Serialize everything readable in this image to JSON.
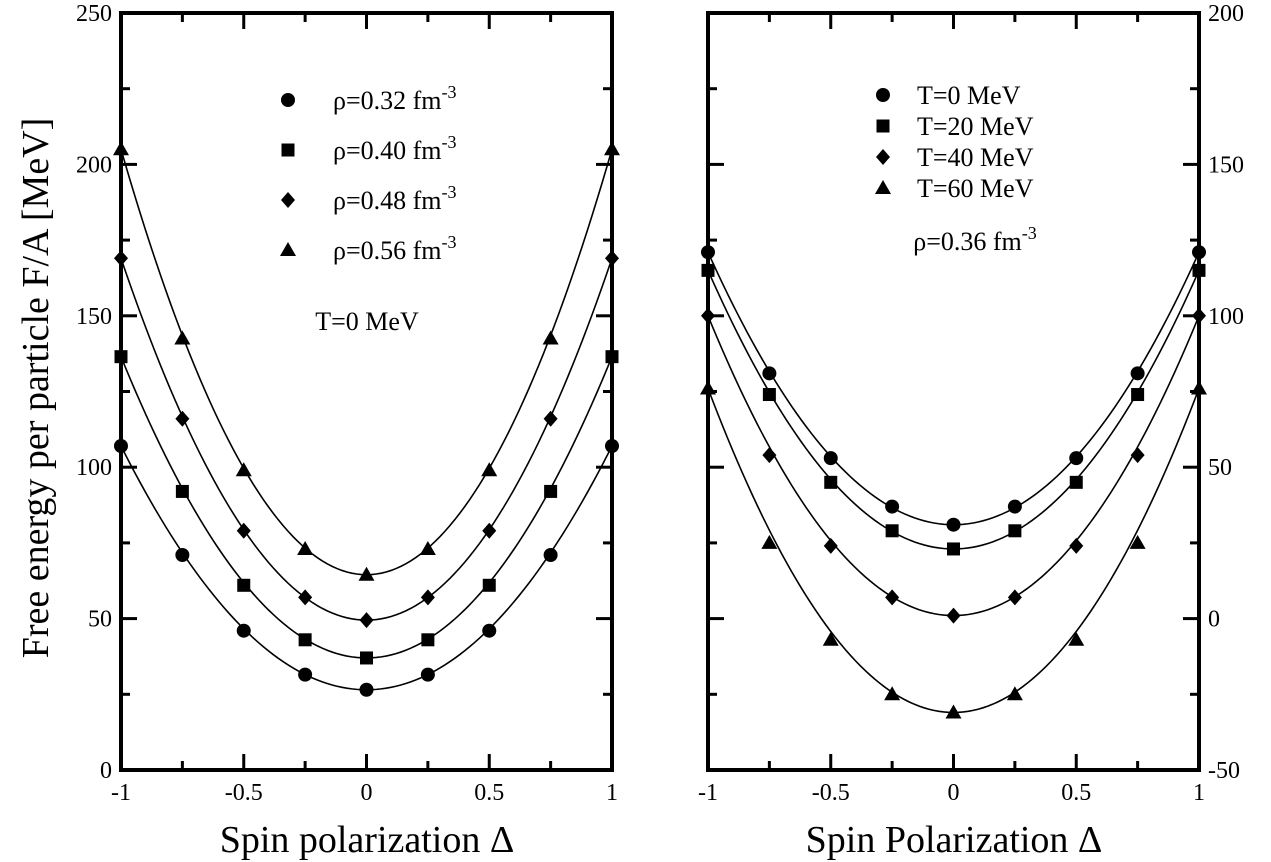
{
  "chart_data": [
    {
      "type": "scatter",
      "title": "",
      "xlabel": "Spin polarization Δ",
      "ylabel": "Free energy per particle F/A [MeV]",
      "xlim": [
        -1,
        1
      ],
      "ylim": [
        0,
        250
      ],
      "x_ticks": [
        "-1",
        "-0.5",
        "0",
        "0.5",
        "1"
      ],
      "y_ticks": [
        "0",
        "50",
        "100",
        "150",
        "200",
        "250"
      ],
      "y_tick_side": "left",
      "grid": false,
      "legend_position": "top-center",
      "annotation": "T=0 MeV",
      "x": [
        -1,
        -0.75,
        -0.5,
        -0.25,
        0,
        0.25,
        0.5,
        0.75,
        1
      ],
      "series": [
        {
          "name": "ρ=0.32 fm",
          "name_sup": "-3",
          "marker": "circle",
          "values": [
            107,
            71,
            46,
            31.5,
            26.5,
            31.5,
            46,
            71,
            107
          ]
        },
        {
          "name": "ρ=0.40 fm",
          "name_sup": "-3",
          "marker": "square",
          "values": [
            136.5,
            92,
            61,
            43,
            37,
            43,
            61,
            92,
            136.5
          ]
        },
        {
          "name": "ρ=0.48 fm",
          "name_sup": "-3",
          "marker": "diamond",
          "values": [
            169,
            116,
            79,
            57,
            49.5,
            57,
            79,
            116,
            169
          ]
        },
        {
          "name": "ρ=0.56 fm",
          "name_sup": "-3",
          "marker": "triangle",
          "values": [
            205,
            142.5,
            99,
            73,
            64.5,
            73,
            99,
            142.5,
            205
          ]
        }
      ]
    },
    {
      "type": "scatter",
      "title": "",
      "xlabel": "Spin Polarization Δ",
      "ylabel": "",
      "xlim": [
        -1,
        1
      ],
      "ylim": [
        -50,
        200
      ],
      "x_ticks": [
        "-1",
        "-0.5",
        "0",
        "0.5",
        "1"
      ],
      "y_ticks": [
        "-50",
        "0",
        "50",
        "100",
        "150",
        "200"
      ],
      "y_tick_side": "right",
      "grid": false,
      "legend_position": "top-center",
      "annotation": "ρ=0.36 fm",
      "annotation_sup": "-3",
      "x": [
        -1,
        -0.75,
        -0.5,
        -0.25,
        0,
        0.25,
        0.5,
        0.75,
        1
      ],
      "series": [
        {
          "name": "T=0 MeV",
          "marker": "circle",
          "values": [
            121,
            81,
            53,
            37,
            31,
            37,
            53,
            81,
            121
          ]
        },
        {
          "name": "T=20 MeV",
          "marker": "square",
          "values": [
            115,
            74,
            45,
            29,
            23,
            29,
            45,
            74,
            115
          ]
        },
        {
          "name": "T=40 MeV",
          "marker": "diamond",
          "values": [
            100,
            54,
            24,
            7,
            1,
            7,
            24,
            54,
            100
          ]
        },
        {
          "name": "T=60 MeV",
          "marker": "triangle",
          "values": [
            76,
            25,
            -7,
            -25,
            -31,
            -25,
            -7,
            25,
            76
          ]
        }
      ]
    }
  ]
}
